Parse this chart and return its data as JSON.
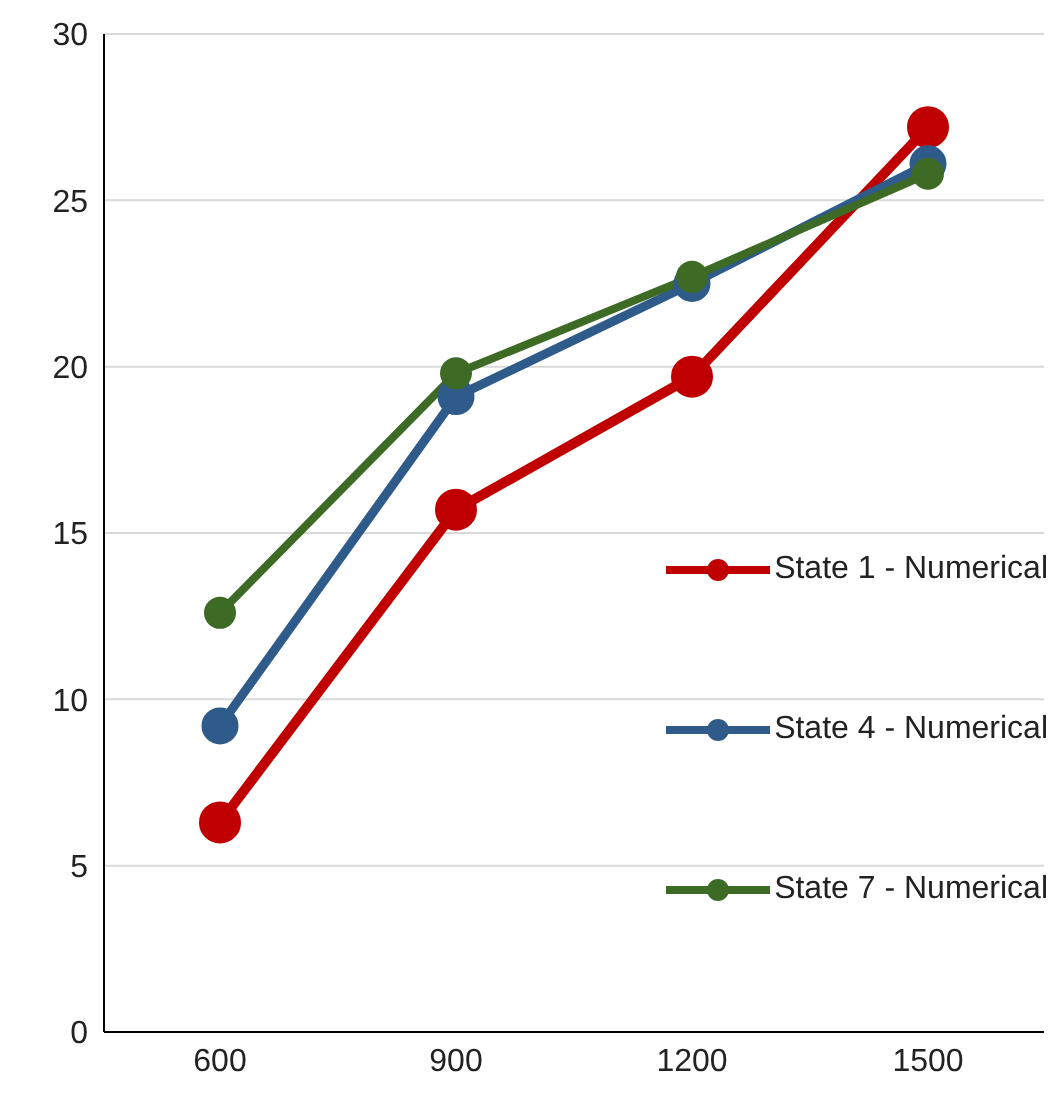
{
  "chart_data": {
    "type": "line",
    "categories": [
      "600",
      "900",
      "1200",
      "1500"
    ],
    "series": [
      {
        "name": "State 1 - Numerical",
        "color": "#c00000",
        "values": [
          6.3,
          15.7,
          19.7,
          27.2
        ]
      },
      {
        "name": "State 4 - Numerical",
        "color": "#2e5b8a",
        "values": [
          9.2,
          19.1,
          22.5,
          26.1
        ]
      },
      {
        "name": "State 7 - Numerical",
        "color": "#3d6b25",
        "values": [
          12.6,
          19.8,
          22.7,
          25.8
        ]
      }
    ],
    "ylim": [
      0,
      30
    ],
    "yticks": [
      0,
      5,
      10,
      15,
      20,
      25,
      30
    ],
    "grid": "y",
    "legend": "right",
    "marker": "circle",
    "line_style": "solid"
  }
}
